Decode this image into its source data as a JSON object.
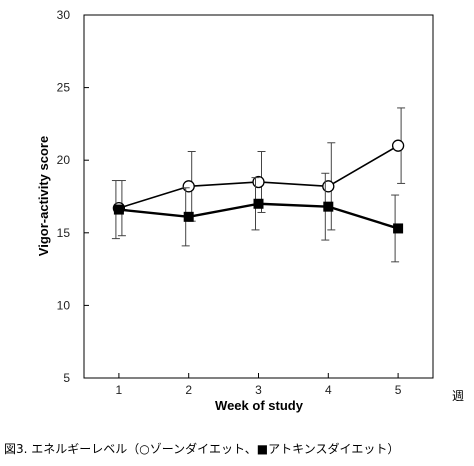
{
  "chart_data": {
    "type": "line",
    "x": [
      1,
      2,
      3,
      4,
      5
    ],
    "xticks": [
      "1",
      "2",
      "3",
      "4",
      "5"
    ],
    "yticks": [
      "5",
      "10",
      "15",
      "20",
      "25",
      "30"
    ],
    "xlabel": "Week of study",
    "ylabel": "Vigor-activity score",
    "x_unit_label": "週",
    "ylim": [
      5,
      30
    ],
    "xlim": [
      0.5,
      5.5
    ],
    "grid": false,
    "series": [
      {
        "marker": "open-circle",
        "color": "#000000",
        "values": [
          16.7,
          18.2,
          18.5,
          18.2,
          21.0
        ],
        "error": [
          1.9,
          2.4,
          2.1,
          3.0,
          2.6
        ]
      },
      {
        "marker": "filled-square",
        "color": "#000000",
        "values": [
          16.6,
          16.1,
          17.0,
          16.8,
          15.3
        ],
        "error": [
          2.0,
          2.0,
          1.8,
          2.3,
          2.3
        ]
      }
    ]
  },
  "caption": "図3. エネルギーレベル（○ゾーンダイエット、■アトキンスダイエット）"
}
